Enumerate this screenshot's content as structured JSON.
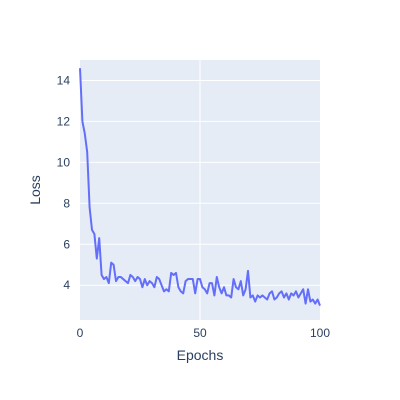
{
  "chart_data": {
    "type": "line",
    "title": "",
    "xlabel": "Epochs",
    "ylabel": "Loss",
    "xlim": [
      0,
      100
    ],
    "ylim": [
      2.3,
      15
    ],
    "x_ticks": [
      0,
      50,
      100
    ],
    "y_ticks": [
      4,
      6,
      8,
      10,
      12,
      14
    ],
    "grid": true,
    "legend": "none",
    "colors": {
      "plot_bg": "#e5ecf6",
      "grid": "#ffffff",
      "line": "#636efa",
      "text": "#2a3f5f"
    },
    "series": [
      {
        "x": [
          0,
          1,
          2,
          3,
          4,
          5,
          6,
          7,
          8,
          9,
          10,
          11,
          12,
          13,
          14,
          15,
          16,
          17,
          18,
          19,
          20,
          21,
          22,
          23,
          24,
          25,
          26,
          27,
          28,
          29,
          30,
          31,
          32,
          33,
          34,
          35,
          36,
          37,
          38,
          39,
          40,
          41,
          42,
          43,
          44,
          45,
          46,
          47,
          48,
          49,
          50,
          51,
          52,
          53,
          54,
          55,
          56,
          57,
          58,
          59,
          60,
          61,
          62,
          63,
          64,
          65,
          66,
          67,
          68,
          69,
          70,
          71,
          72,
          73,
          74,
          75,
          76,
          77,
          78,
          79,
          80,
          81,
          82,
          83,
          84,
          85,
          86,
          87,
          88,
          89,
          90,
          91,
          92,
          93,
          94,
          95,
          96,
          97,
          98,
          99,
          100
        ],
        "values": [
          14.6,
          12.0,
          11.4,
          10.5,
          7.8,
          6.7,
          6.5,
          5.3,
          6.3,
          4.5,
          4.3,
          4.4,
          4.1,
          5.1,
          5.0,
          4.2,
          4.4,
          4.4,
          4.3,
          4.2,
          4.1,
          4.5,
          4.4,
          4.2,
          4.4,
          4.3,
          3.9,
          4.3,
          4.0,
          4.2,
          4.1,
          3.9,
          4.4,
          4.3,
          4.0,
          3.7,
          3.8,
          3.7,
          4.6,
          4.5,
          4.6,
          3.9,
          3.7,
          3.6,
          4.2,
          4.3,
          4.3,
          4.3,
          3.6,
          4.3,
          4.3,
          3.9,
          3.8,
          3.6,
          4.1,
          4.1,
          3.5,
          4.4,
          3.9,
          3.6,
          3.9,
          3.5,
          3.5,
          3.4,
          4.3,
          3.9,
          3.8,
          4.2,
          3.5,
          3.8,
          4.7,
          3.4,
          3.5,
          3.2,
          3.5,
          3.4,
          3.5,
          3.4,
          3.3,
          3.6,
          3.7,
          3.3,
          3.4,
          3.6,
          3.7,
          3.4,
          3.6,
          3.3,
          3.6,
          3.5,
          3.7,
          3.4,
          3.6,
          3.8,
          3.1,
          3.8,
          3.2,
          3.3,
          3.1,
          3.3,
          3.0
        ]
      }
    ]
  }
}
